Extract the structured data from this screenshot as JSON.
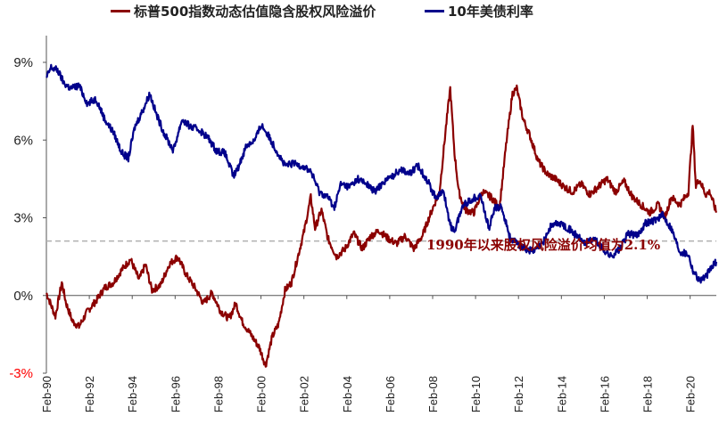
{
  "chart_data": {
    "type": "line",
    "title": "",
    "xlabel": "",
    "ylabel": "",
    "ylim": [
      -3,
      10
    ],
    "yticks": [
      "9%",
      "6%",
      "3%",
      "0%",
      "-3%"
    ],
    "ytick_values": [
      9,
      6,
      3,
      0,
      -3
    ],
    "xticks": [
      "Feb-90",
      "Feb-92",
      "Feb-94",
      "Feb-96",
      "Feb-98",
      "Feb-00",
      "Feb-02",
      "Feb-04",
      "Feb-06",
      "Feb-08",
      "Feb-10",
      "Feb-12",
      "Feb-14",
      "Feb-16",
      "Feb-18",
      "Feb-20"
    ],
    "xtick_years": [
      1990.08,
      1992.08,
      1994.08,
      1996.08,
      1998.08,
      2000.08,
      2002.08,
      2004.08,
      2006.08,
      2008.08,
      2010.08,
      2012.08,
      2014.08,
      2016.08,
      2018.08,
      2020.08
    ],
    "xlim": [
      1990.08,
      2021.3
    ],
    "reference_line": {
      "value": 2.1,
      "style": "dashed"
    },
    "annotation": "1990年以来股权风险溢价均值为2.1%",
    "legend_position": "top",
    "series": [
      {
        "name": "标普500指数动态估值隐含股权风险溢价",
        "color": "#8B0000",
        "x": [
          1990.08,
          1990.5,
          1990.8,
          1991.0,
          1991.3,
          1991.6,
          1992.0,
          1992.4,
          1992.8,
          1993.2,
          1993.6,
          1994.0,
          1994.4,
          1994.7,
          1995.0,
          1995.4,
          1995.8,
          1996.2,
          1996.6,
          1997.0,
          1997.4,
          1997.8,
          1998.2,
          1998.6,
          1998.9,
          1999.2,
          1999.6,
          2000.0,
          2000.3,
          2000.6,
          2000.9,
          2001.2,
          2001.5,
          2001.8,
          2002.1,
          2002.4,
          2002.6,
          2002.9,
          2003.2,
          2003.6,
          2004.0,
          2004.4,
          2004.8,
          2005.2,
          2005.6,
          2006.0,
          2006.4,
          2006.8,
          2007.2,
          2007.6,
          2008.0,
          2008.4,
          2008.7,
          2008.9,
          2009.1,
          2009.3,
          2009.6,
          2010.0,
          2010.4,
          2010.8,
          2011.2,
          2011.5,
          2011.8,
          2012.0,
          2012.3,
          2012.6,
          2013.0,
          2013.4,
          2013.8,
          2014.2,
          2014.6,
          2015.0,
          2015.4,
          2015.8,
          2016.2,
          2016.6,
          2017.0,
          2017.4,
          2017.8,
          2018.2,
          2018.6,
          2018.9,
          2019.2,
          2019.6,
          2020.0,
          2020.2,
          2020.35,
          2020.5,
          2020.8,
          2021.0,
          2021.3
        ],
        "values": [
          0.1,
          -0.8,
          0.5,
          -0.3,
          -1.0,
          -1.2,
          -0.6,
          -0.2,
          0.3,
          0.5,
          1.0,
          1.4,
          0.6,
          1.2,
          0.2,
          0.4,
          1.2,
          1.5,
          0.8,
          0.3,
          -0.3,
          0.1,
          -0.6,
          -0.9,
          -0.3,
          -1.0,
          -1.5,
          -2.0,
          -2.7,
          -1.6,
          -1.1,
          0.2,
          0.5,
          1.5,
          2.5,
          3.8,
          2.6,
          3.3,
          2.2,
          1.5,
          1.8,
          2.4,
          1.8,
          2.3,
          2.5,
          2.2,
          2.0,
          2.3,
          1.8,
          2.3,
          3.2,
          4.0,
          6.5,
          8.0,
          5.5,
          4.0,
          3.3,
          3.2,
          4.0,
          3.8,
          3.4,
          5.8,
          7.8,
          8.0,
          6.8,
          6.2,
          5.2,
          4.7,
          4.5,
          4.2,
          4.0,
          4.3,
          3.9,
          4.2,
          4.5,
          4.0,
          4.4,
          3.8,
          3.5,
          3.2,
          3.5,
          3.0,
          3.8,
          3.5,
          4.0,
          6.6,
          4.2,
          4.5,
          3.9,
          4.0,
          3.2
        ]
      },
      {
        "name": "10年美债利率",
        "color": "#00008B",
        "x": [
          1990.08,
          1990.3,
          1990.6,
          1990.9,
          1991.2,
          1991.6,
          1992.0,
          1992.4,
          1992.8,
          1993.2,
          1993.6,
          1993.9,
          1994.2,
          1994.6,
          1994.9,
          1995.2,
          1995.6,
          1996.0,
          1996.4,
          1996.8,
          1997.2,
          1997.6,
          1998.0,
          1998.4,
          1998.8,
          1999.0,
          1999.4,
          1999.8,
          2000.1,
          2000.4,
          2000.8,
          2001.2,
          2001.6,
          2002.0,
          2002.4,
          2002.8,
          2003.2,
          2003.5,
          2003.8,
          2004.2,
          2004.6,
          2005.0,
          2005.4,
          2005.8,
          2006.2,
          2006.6,
          2007.0,
          2007.4,
          2007.8,
          2008.2,
          2008.6,
          2008.9,
          2009.1,
          2009.5,
          2009.9,
          2010.3,
          2010.7,
          2011.0,
          2011.3,
          2011.7,
          2012.0,
          2012.4,
          2012.8,
          2013.2,
          2013.6,
          2014.0,
          2014.4,
          2014.8,
          2015.2,
          2015.6,
          2016.0,
          2016.4,
          2016.8,
          2017.2,
          2017.6,
          2018.0,
          2018.4,
          2018.8,
          2019.2,
          2019.6,
          2020.0,
          2020.2,
          2020.5,
          2020.8,
          2021.0,
          2021.3
        ],
        "values": [
          8.4,
          8.8,
          8.7,
          8.2,
          8.0,
          8.1,
          7.4,
          7.6,
          6.8,
          6.3,
          5.5,
          5.3,
          6.5,
          7.2,
          7.8,
          7.0,
          6.2,
          5.6,
          6.8,
          6.5,
          6.4,
          6.1,
          5.6,
          5.5,
          4.6,
          4.9,
          5.8,
          6.0,
          6.6,
          6.2,
          5.6,
          5.0,
          5.1,
          5.0,
          4.8,
          4.0,
          3.8,
          3.4,
          4.3,
          4.2,
          4.5,
          4.3,
          4.0,
          4.4,
          4.6,
          4.9,
          4.7,
          5.0,
          4.5,
          3.8,
          4.0,
          2.7,
          2.5,
          3.5,
          3.7,
          3.9,
          2.6,
          3.4,
          3.4,
          2.2,
          2.0,
          1.8,
          1.7,
          2.0,
          2.7,
          2.8,
          2.6,
          2.3,
          2.0,
          2.2,
          1.8,
          1.5,
          1.8,
          2.4,
          2.3,
          2.8,
          2.9,
          3.1,
          2.6,
          1.7,
          1.6,
          1.0,
          0.6,
          0.7,
          1.0,
          1.3
        ]
      }
    ]
  }
}
